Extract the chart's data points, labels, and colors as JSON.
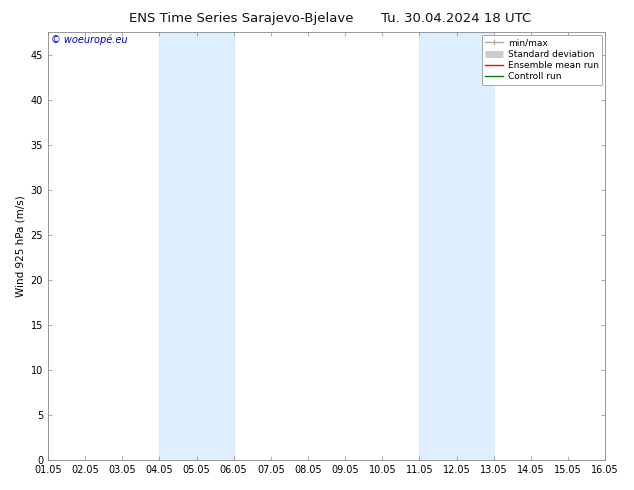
{
  "title_left": "ENS Time Series Sarajevo-Bjelave",
  "title_right": "Tu. 30.04.2024 18 UTC",
  "ylabel": "Wind 925 hPa (m/s)",
  "watermark": "© woeuropé.eu",
  "xlim": [
    0,
    15
  ],
  "ylim": [
    0,
    47.5
  ],
  "yticks": [
    0,
    5,
    10,
    15,
    20,
    25,
    30,
    35,
    40,
    45
  ],
  "xtick_labels": [
    "01.05",
    "02.05",
    "03.05",
    "04.05",
    "05.05",
    "06.05",
    "07.05",
    "08.05",
    "09.05",
    "10.05",
    "11.05",
    "12.05",
    "13.05",
    "14.05",
    "15.05",
    "16.05"
  ],
  "shaded_regions": [
    {
      "xmin": 3,
      "xmax": 5,
      "color": "#ddeeff"
    },
    {
      "xmin": 10,
      "xmax": 12,
      "color": "#ddeeff"
    }
  ],
  "background_color": "#ffffff",
  "plot_bg_color": "#ffffff",
  "legend_entries": [
    {
      "label": "min/max",
      "color": "#aaaaaa",
      "lw": 1.0
    },
    {
      "label": "Standard deviation",
      "color": "#cccccc",
      "lw": 5
    },
    {
      "label": "Ensemble mean run",
      "color": "#ff0000",
      "lw": 1.0
    },
    {
      "label": "Controll run",
      "color": "#008000",
      "lw": 1.0
    }
  ],
  "title_fontsize": 9.5,
  "axis_fontsize": 7.5,
  "tick_fontsize": 7,
  "watermark_color": "#0000cc",
  "border_color": "#888888"
}
